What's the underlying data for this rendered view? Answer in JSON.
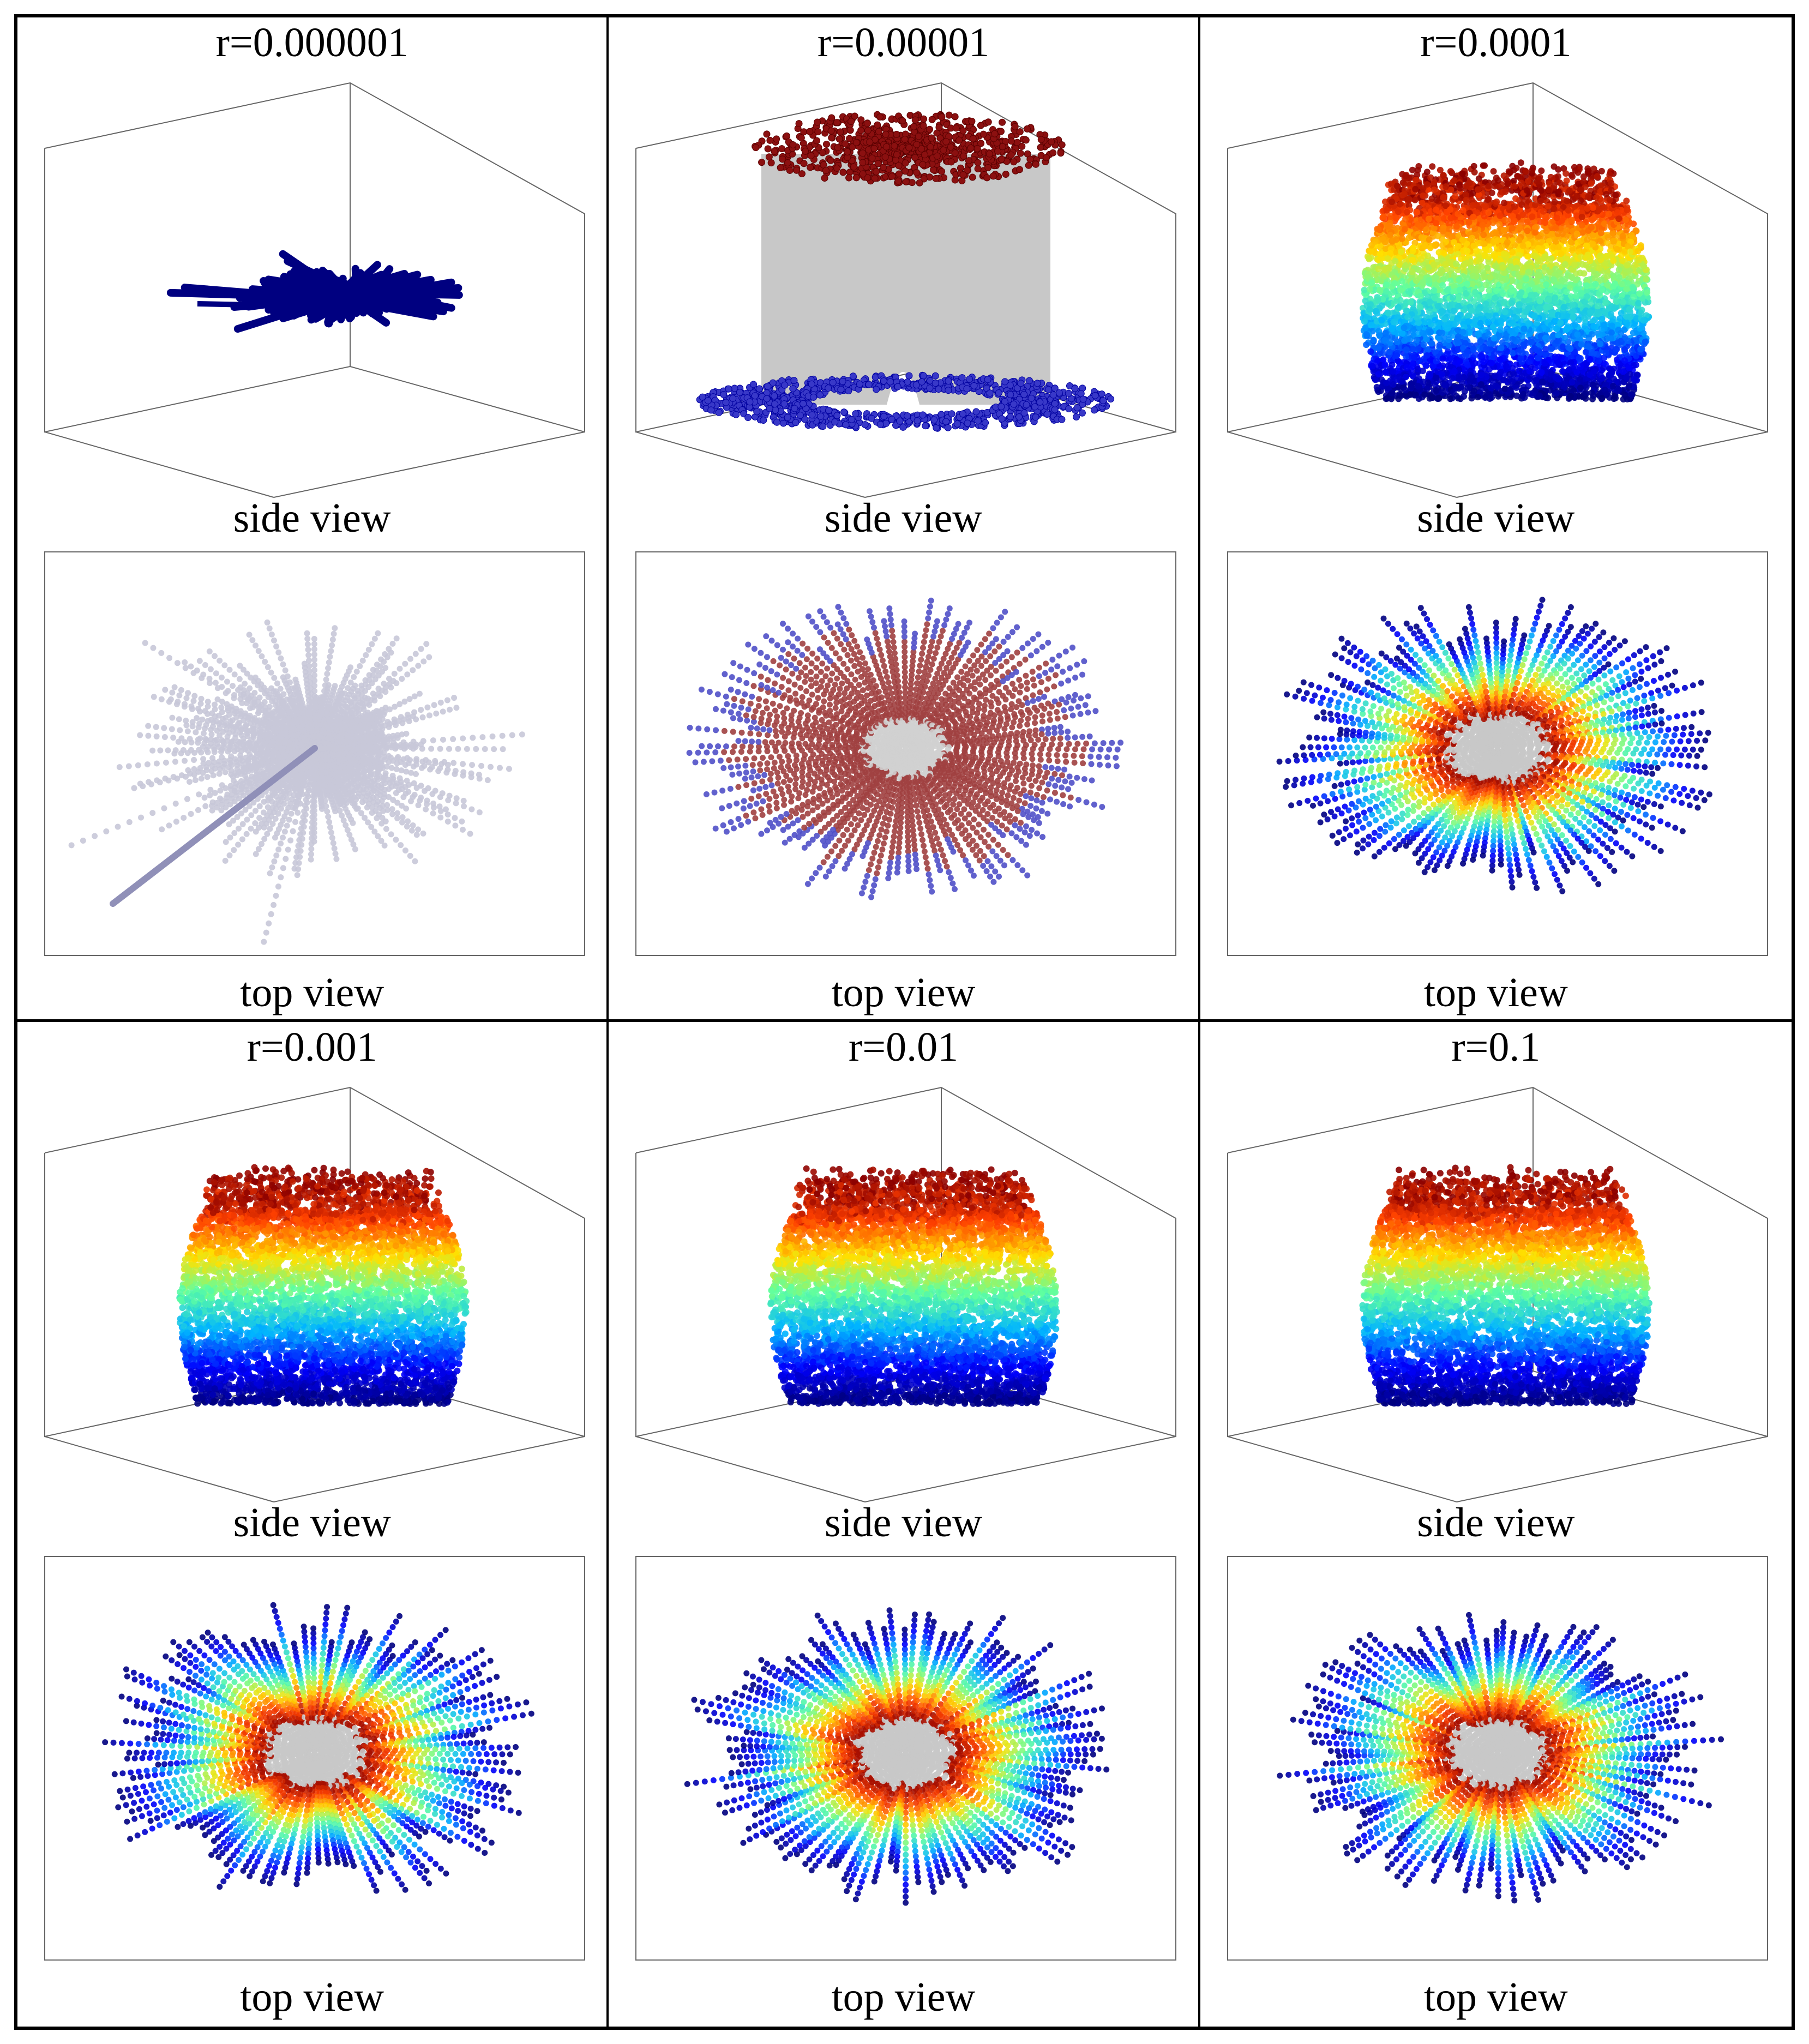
{
  "panels": [
    {
      "title": "r=0.000001",
      "side_caption": "side view",
      "top_caption": "top view",
      "style": "collapsed"
    },
    {
      "title": "r=0.00001",
      "side_caption": "side view",
      "top_caption": "top view",
      "style": "split"
    },
    {
      "title": "r=0.0001",
      "side_caption": "side view",
      "top_caption": "top view",
      "style": "gradient"
    },
    {
      "title": "r=0.001",
      "side_caption": "side view",
      "top_caption": "top view",
      "style": "gradient"
    },
    {
      "title": "r=0.01",
      "side_caption": "side view",
      "top_caption": "top view",
      "style": "gradient"
    },
    {
      "title": "r=0.1",
      "side_caption": "side view",
      "top_caption": "top view",
      "style": "gradient"
    }
  ],
  "colors": {
    "colormap": [
      "#00007f",
      "#0000ff",
      "#00b4ff",
      "#5effa0",
      "#ffe000",
      "#ff4000",
      "#8b0000"
    ],
    "connector": "#c8c8c8",
    "box_edge": "#666666"
  }
}
